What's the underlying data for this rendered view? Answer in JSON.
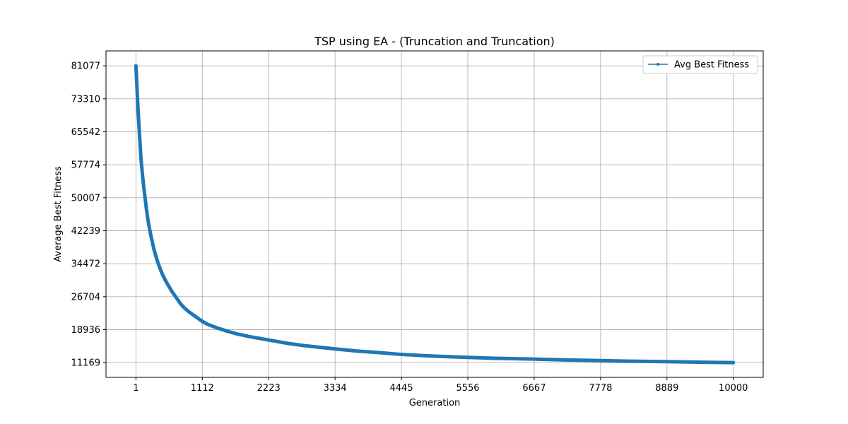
{
  "chart_data": {
    "type": "line",
    "title": "TSP using EA - (Truncation and Truncation)",
    "xlabel": "Generation",
    "ylabel": "Average Best Fitness",
    "xlim": [
      -500,
      10500
    ],
    "ylim": [
      7700,
      84600
    ],
    "grid": true,
    "legend_position": "top-right",
    "x_ticks": [
      1,
      1112,
      2223,
      3334,
      4445,
      5556,
      6667,
      7778,
      8889,
      10000
    ],
    "x_tick_labels": [
      "1",
      "1112",
      "2223",
      "3334",
      "4445",
      "5556",
      "6667",
      "7778",
      "8889",
      "10000"
    ],
    "y_ticks": [
      11169,
      18936,
      26704,
      34472,
      42239,
      50007,
      57774,
      65542,
      73310,
      81077
    ],
    "y_tick_labels": [
      "11169",
      "18936",
      "26704",
      "34472",
      "42239",
      "50007",
      "57774",
      "65542",
      "73310",
      "81077"
    ],
    "series": [
      {
        "name": "Avg Best Fitness",
        "color": "#1f77b4",
        "x": [
          1,
          10,
          20,
          30,
          40,
          50,
          60,
          75,
          90,
          110,
          130,
          150,
          175,
          200,
          225,
          250,
          300,
          350,
          400,
          450,
          500,
          550,
          600,
          650,
          700,
          750,
          800,
          900,
          1000,
          1112,
          1200,
          1350,
          1500,
          1700,
          1900,
          2100,
          2223,
          2500,
          2800,
          3000,
          3334,
          3700,
          4000,
          4445,
          5000,
          5556,
          6000,
          6667,
          7200,
          7778,
          8300,
          8889,
          9500,
          10000
        ],
        "values": [
          81077,
          78500,
          75500,
          72500,
          69800,
          67500,
          65000,
          61500,
          58500,
          55500,
          52800,
          50500,
          47500,
          45000,
          43000,
          41200,
          38000,
          35500,
          33500,
          31800,
          30400,
          29200,
          28000,
          27000,
          26000,
          25000,
          24200,
          23000,
          22000,
          20900,
          20200,
          19400,
          18700,
          17900,
          17300,
          16800,
          16500,
          15800,
          15200,
          14900,
          14400,
          13900,
          13600,
          13100,
          12700,
          12400,
          12200,
          12000,
          11800,
          11650,
          11500,
          11400,
          11250,
          11169
        ]
      }
    ]
  }
}
